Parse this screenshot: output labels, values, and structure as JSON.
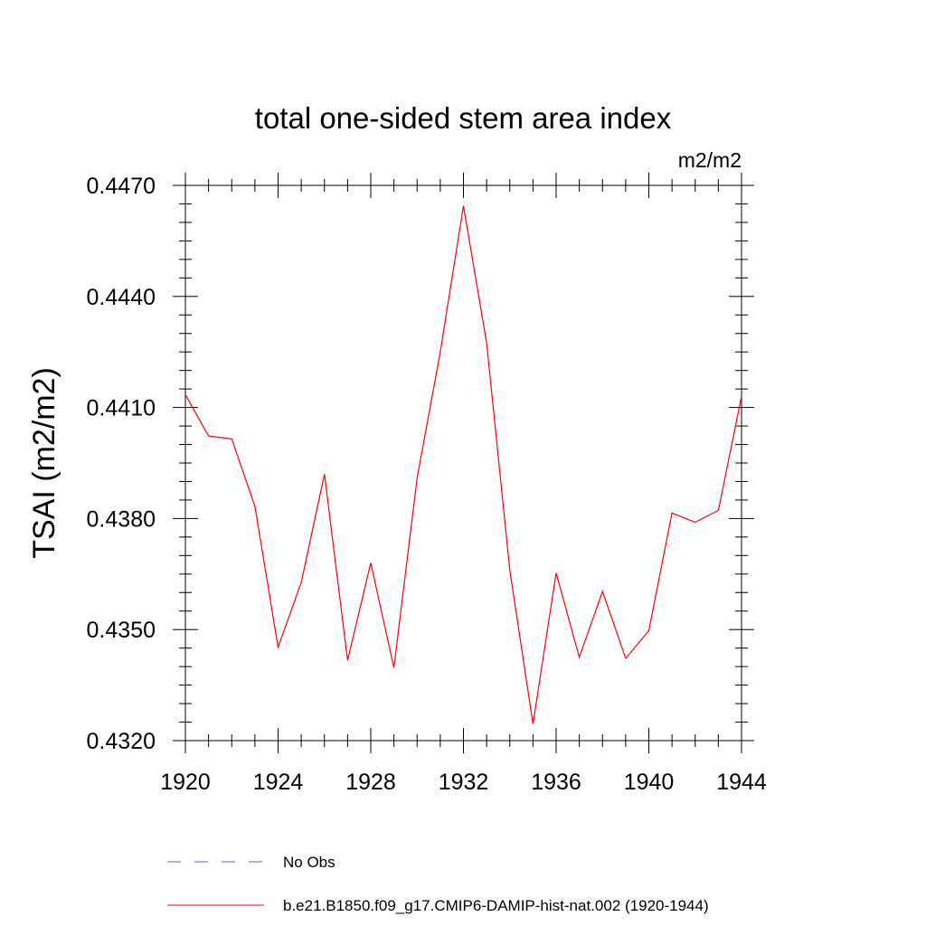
{
  "chart_data": {
    "type": "line",
    "title": "total one-sided stem area index",
    "units_label": "m2/m2",
    "ylabel": "TSAI  (m2/m2)",
    "xlabel": "",
    "xlim": [
      1920,
      1944
    ],
    "ylim": [
      0.432,
      0.447
    ],
    "x_ticks": [
      1920,
      1924,
      1928,
      1932,
      1936,
      1940,
      1944
    ],
    "x_tick_labels": [
      "1920",
      "1924",
      "1928",
      "1932",
      "1936",
      "1940",
      "1944"
    ],
    "y_ticks": [
      0.432,
      0.435,
      0.438,
      0.441,
      0.444,
      0.447
    ],
    "y_tick_labels": [
      "0.4320",
      "0.4350",
      "0.4380",
      "0.4410",
      "0.4440",
      "0.4470"
    ],
    "grid": false,
    "legend_position": "bottom",
    "legend": [
      {
        "label": "No Obs",
        "color": "#6a5acd",
        "style": "dashed"
      },
      {
        "label": "b.e21.B1850.f09_g17.CMIP6-DAMIP-hist-nat.002 (1920-1944)",
        "color": "#ff0000",
        "style": "solid"
      }
    ],
    "series": [
      {
        "name": "b.e21.B1850.f09_g17.CMIP6-DAMIP-hist-nat.002 (1920-1944)",
        "color": "#ff0000",
        "x": [
          1920,
          1921,
          1922,
          1923,
          1924,
          1925,
          1926,
          1927,
          1928,
          1929,
          1930,
          1931,
          1932,
          1933,
          1934,
          1935,
          1936,
          1937,
          1938,
          1939,
          1940,
          1941,
          1942,
          1943,
          1944
        ],
        "y": [
          0.44135,
          0.44023,
          0.44015,
          0.43833,
          0.43452,
          0.43627,
          0.4392,
          0.43417,
          0.4368,
          0.43397,
          0.4391,
          0.4425,
          0.44645,
          0.44275,
          0.4366,
          0.43245,
          0.43653,
          0.43425,
          0.43603,
          0.43422,
          0.43497,
          0.43815,
          0.4379,
          0.43822,
          0.4413
        ]
      }
    ]
  }
}
